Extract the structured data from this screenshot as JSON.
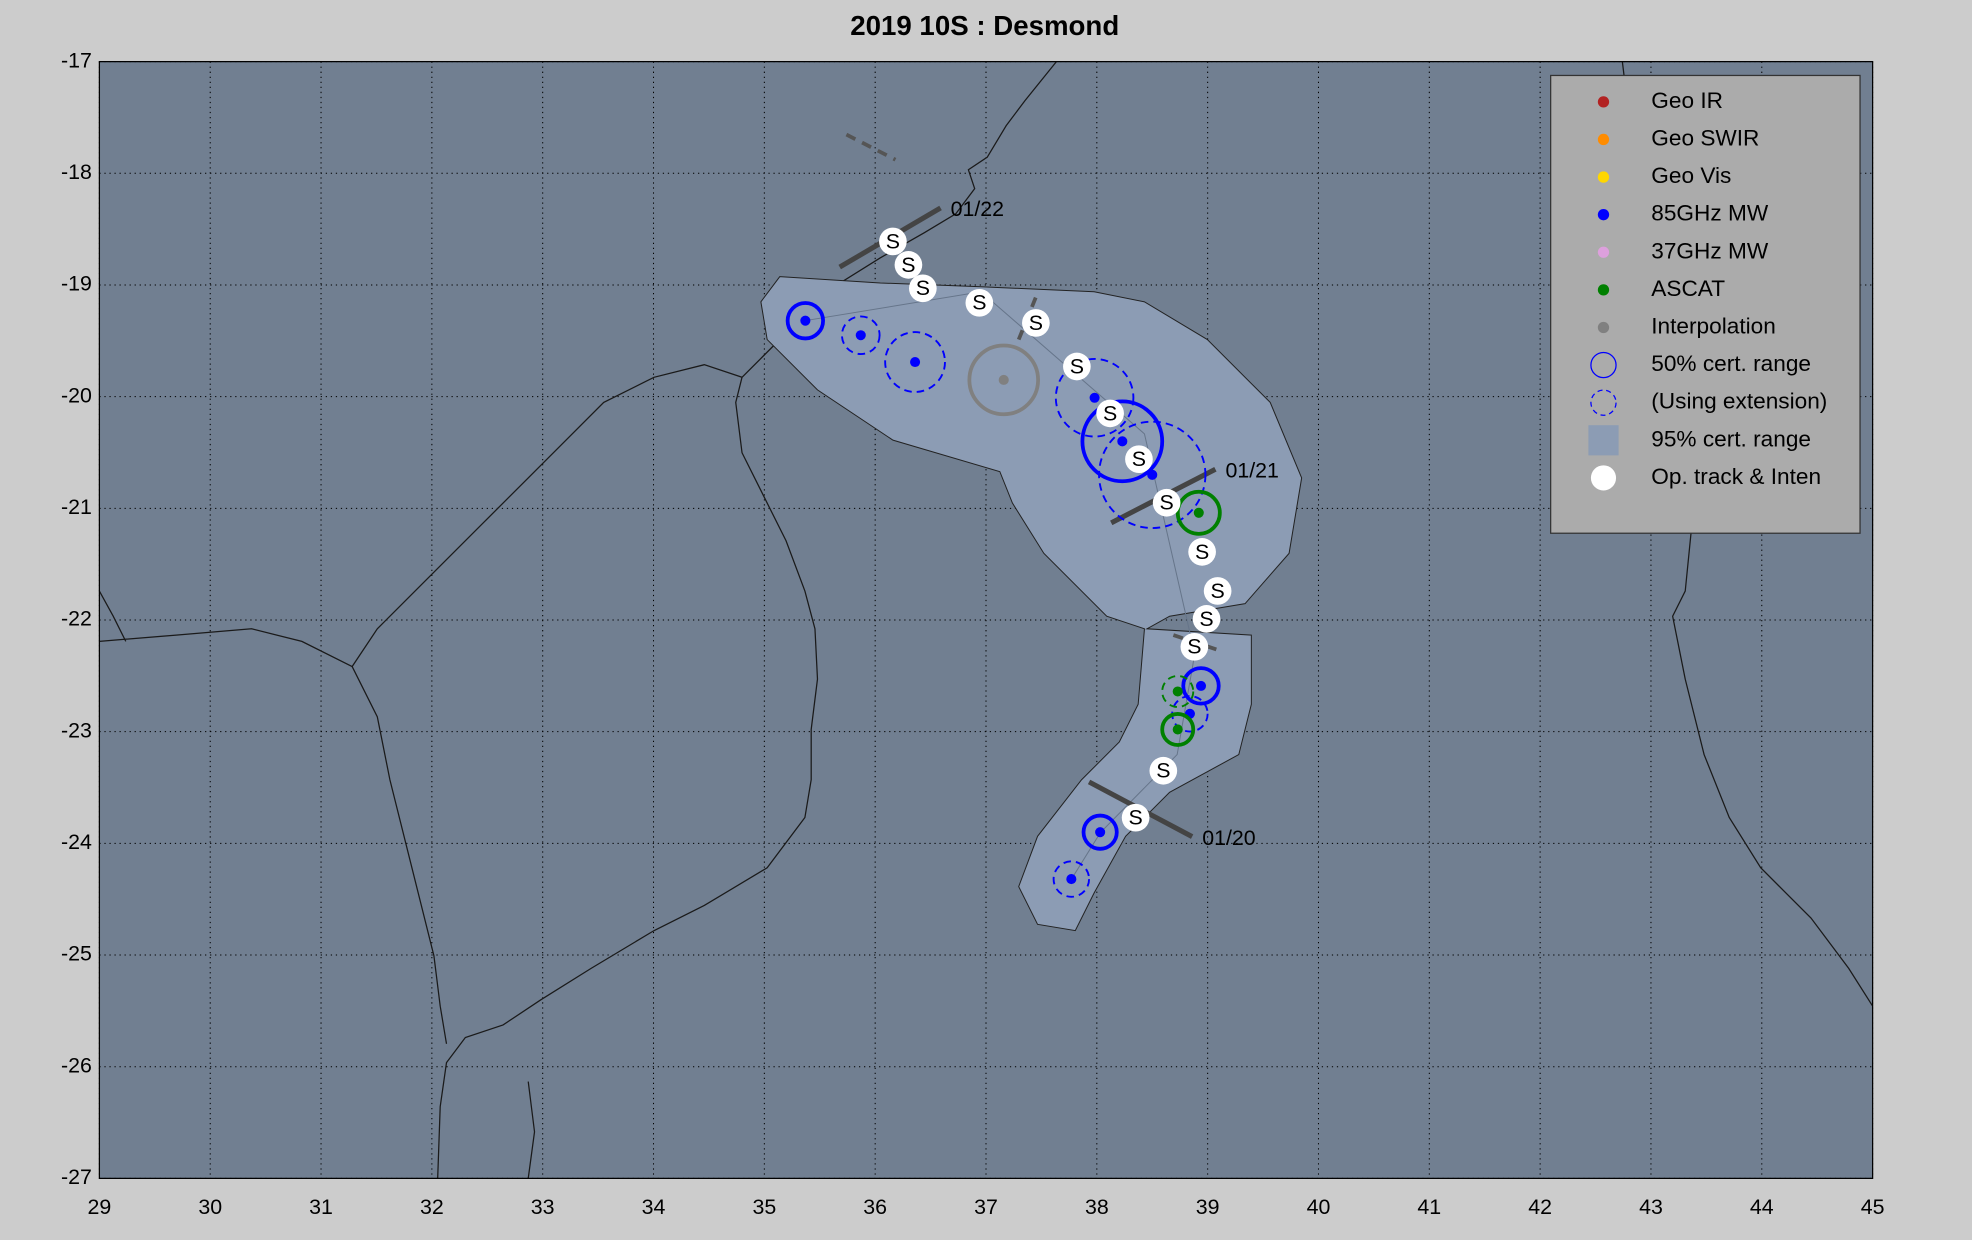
{
  "chart_data": {
    "type": "scatter",
    "title": "2019  10S :  Desmond",
    "xlim": [
      29,
      45
    ],
    "ylim": [
      -27,
      -17
    ],
    "xticks": [
      29,
      30,
      31,
      32,
      33,
      34,
      35,
      36,
      37,
      38,
      39,
      40,
      41,
      42,
      43,
      44,
      45
    ],
    "yticks": [
      -17,
      -18,
      -19,
      -20,
      -21,
      -22,
      -23,
      -24,
      -25,
      -26,
      -27
    ],
    "grid": true,
    "legend": "upper right",
    "series": [
      {
        "name": "Geo IR",
        "color": "#b22222",
        "x": [],
        "values": [],
        "radius": [],
        "extension": []
      },
      {
        "name": "Geo SWIR",
        "color": "#ff8c00",
        "x": [],
        "values": [],
        "radius": [],
        "extension": []
      },
      {
        "name": "Geo Vis",
        "color": "#ffd700",
        "x": [],
        "values": [],
        "radius": [],
        "extension": []
      },
      {
        "name": "85GHz MW",
        "color": "#0000ff",
        "x": [
          35.37,
          35.87,
          36.36,
          37.98,
          38.23,
          38.5,
          38.94,
          38.84,
          38.03,
          37.77
        ],
        "values": [
          -19.32,
          -19.45,
          -19.69,
          -20.01,
          -20.4,
          -20.7,
          -22.59,
          -22.84,
          -23.9,
          -24.32
        ],
        "radius": [
          0.16,
          0.17,
          0.27,
          0.35,
          0.36,
          0.48,
          0.16,
          0.16,
          0.15,
          0.16
        ],
        "extension": [
          false,
          true,
          true,
          true,
          false,
          true,
          false,
          true,
          false,
          true
        ]
      },
      {
        "name": "37GHz MW",
        "color": "#dda0dd",
        "x": [],
        "values": [],
        "radius": [],
        "extension": []
      },
      {
        "name": "ASCAT",
        "color": "#008000",
        "x": [
          38.92,
          38.73,
          38.73
        ],
        "values": [
          -21.04,
          -22.64,
          -22.98
        ],
        "radius": [
          0.19,
          0.14,
          0.14
        ],
        "extension": [
          false,
          true,
          false
        ]
      },
      {
        "name": "Interpolation",
        "color": "#808080",
        "x": [
          37.16
        ],
        "values": [
          -19.85
        ],
        "radius": [
          0.31
        ],
        "extension": [
          false
        ]
      }
    ],
    "legend_extra": [
      {
        "name": "50% cert. range",
        "symbol": "circle",
        "color": "#0000ff"
      },
      {
        "name": "(Using extension)",
        "symbol": "dashed-circle",
        "color": "#0000ff"
      },
      {
        "name": "95% cert. range",
        "symbol": "square",
        "color": "#8c9cb4"
      },
      {
        "name": "Op. track & Inten",
        "symbol": "dot",
        "color": "#ffffff"
      }
    ],
    "track": {
      "label": "S",
      "x": [
        36.16,
        36.3,
        36.43,
        36.94,
        37.45,
        37.82,
        38.12,
        38.38,
        38.63,
        38.95,
        39.09,
        38.99,
        38.88,
        38.6,
        38.35
      ],
      "values": [
        -18.61,
        -18.82,
        -19.03,
        -19.16,
        -19.34,
        -19.73,
        -20.15,
        -20.56,
        -20.95,
        -21.39,
        -21.74,
        -21.99,
        -22.24,
        -23.35,
        -23.77
      ]
    },
    "dates": [
      {
        "label": "01/22",
        "x": [
          35.68,
          36.59
        ],
        "y": [
          -18.84,
          -18.31
        ]
      },
      {
        "label": "01/21",
        "x": [
          38.13,
          39.07
        ],
        "y": [
          -21.13,
          -20.65
        ]
      },
      {
        "label": "01/20",
        "x": [
          37.93,
          38.86
        ],
        "y": [
          -23.45,
          -23.94
        ]
      }
    ]
  }
}
